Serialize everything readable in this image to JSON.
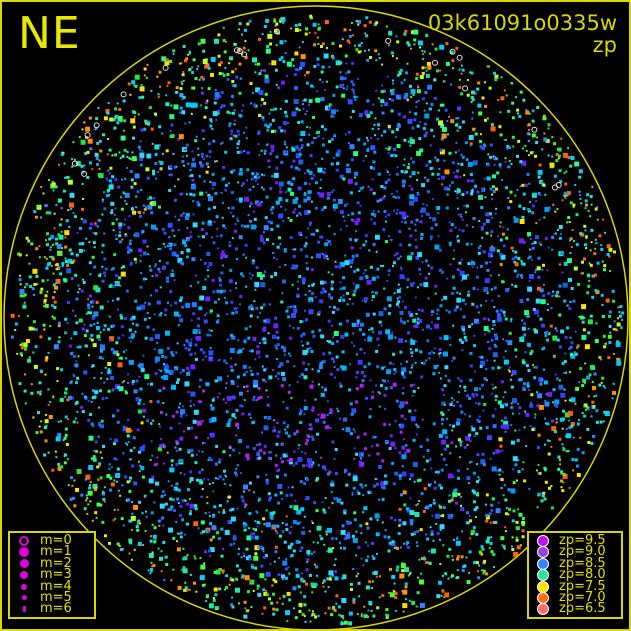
{
  "direction_label": "NE",
  "frame_id": "03k61091o0335w",
  "color_key": "zp",
  "colors": {
    "frame": "#d8d800",
    "horizon_circle": "#d8d800",
    "background": "#000000"
  },
  "magnitude_legend": [
    {
      "label": "m=0",
      "style": "ring"
    },
    {
      "label": "m=1",
      "size": 1
    },
    {
      "label": "m=2",
      "size": 2
    },
    {
      "label": "m=3",
      "size": 3
    },
    {
      "label": "m=4",
      "size": 4
    },
    {
      "label": "m=5",
      "size": 5
    },
    {
      "label": "m=6",
      "size": 6
    }
  ],
  "magnitude_legend_color": "#e000e0",
  "zp_legend": [
    {
      "label": "zp=9.5",
      "color": "#c010f0"
    },
    {
      "label": "zp=9.0",
      "color": "#a040e0"
    },
    {
      "label": "zp=8.5",
      "color": "#2f86ff"
    },
    {
      "label": "zp=8.0",
      "color": "#20e8a0"
    },
    {
      "label": "zp=7.5",
      "color": "#ffe000"
    },
    {
      "label": "zp=7.0",
      "color": "#ff7010"
    },
    {
      "label": "zp=6.5",
      "color": "#ff6a6a"
    }
  ]
}
